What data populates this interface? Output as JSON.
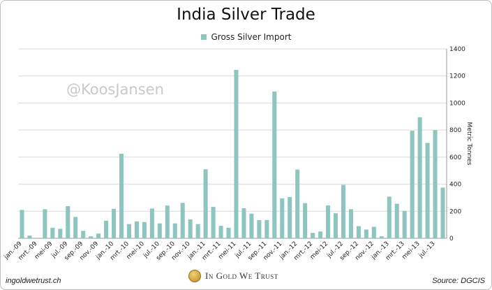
{
  "chart_data": {
    "type": "bar",
    "title": "India Silver Trade",
    "series": [
      {
        "name": "Gross Silver Import",
        "color": "#8ec6bf",
        "values": [
          210,
          20,
          0,
          215,
          78,
          70,
          238,
          158,
          55,
          15,
          35,
          130,
          218,
          625,
          105,
          125,
          120,
          220,
          110,
          242,
          110,
          262,
          140,
          105,
          510,
          232,
          92,
          78,
          1245,
          222,
          182,
          135,
          135,
          1085,
          295,
          305,
          508,
          260,
          40,
          50,
          243,
          185,
          395,
          215,
          90,
          65,
          85,
          15,
          308,
          255,
          203,
          795,
          895,
          705,
          800,
          375
        ]
      }
    ],
    "x_tick_labels": [
      "jan.-09",
      "mrt.-09",
      "mei-09",
      "jul.-09",
      "sep.-09",
      "nov.-09",
      "jan.-10",
      "mrt.-10",
      "mei-10",
      "jul.-10",
      "sep.-10",
      "nov.-10",
      "jan.-11",
      "mrt.-11",
      "mei-11",
      "jul.-11",
      "sep.-11",
      "nov.-11",
      "jan.-12",
      "mrt.-12",
      "mei-12",
      "jul.-12",
      "sep.-12",
      "nov.-12",
      "jan.-13",
      "mrt.-13",
      "mei-13",
      "jul.-13"
    ],
    "ylabel": "Metric Tonnes",
    "ylim": [
      0,
      1400
    ],
    "y_ticks": [
      0,
      200,
      400,
      600,
      800,
      1000,
      1200,
      1400
    ],
    "grid": true,
    "legend_position": "top-center",
    "y_axis_side": "right"
  },
  "watermark": "@KoosJansen",
  "footer": {
    "left": "ingoldwetrust.ch",
    "center": "In Gold We Trust",
    "right": "Source: DGCIS"
  }
}
